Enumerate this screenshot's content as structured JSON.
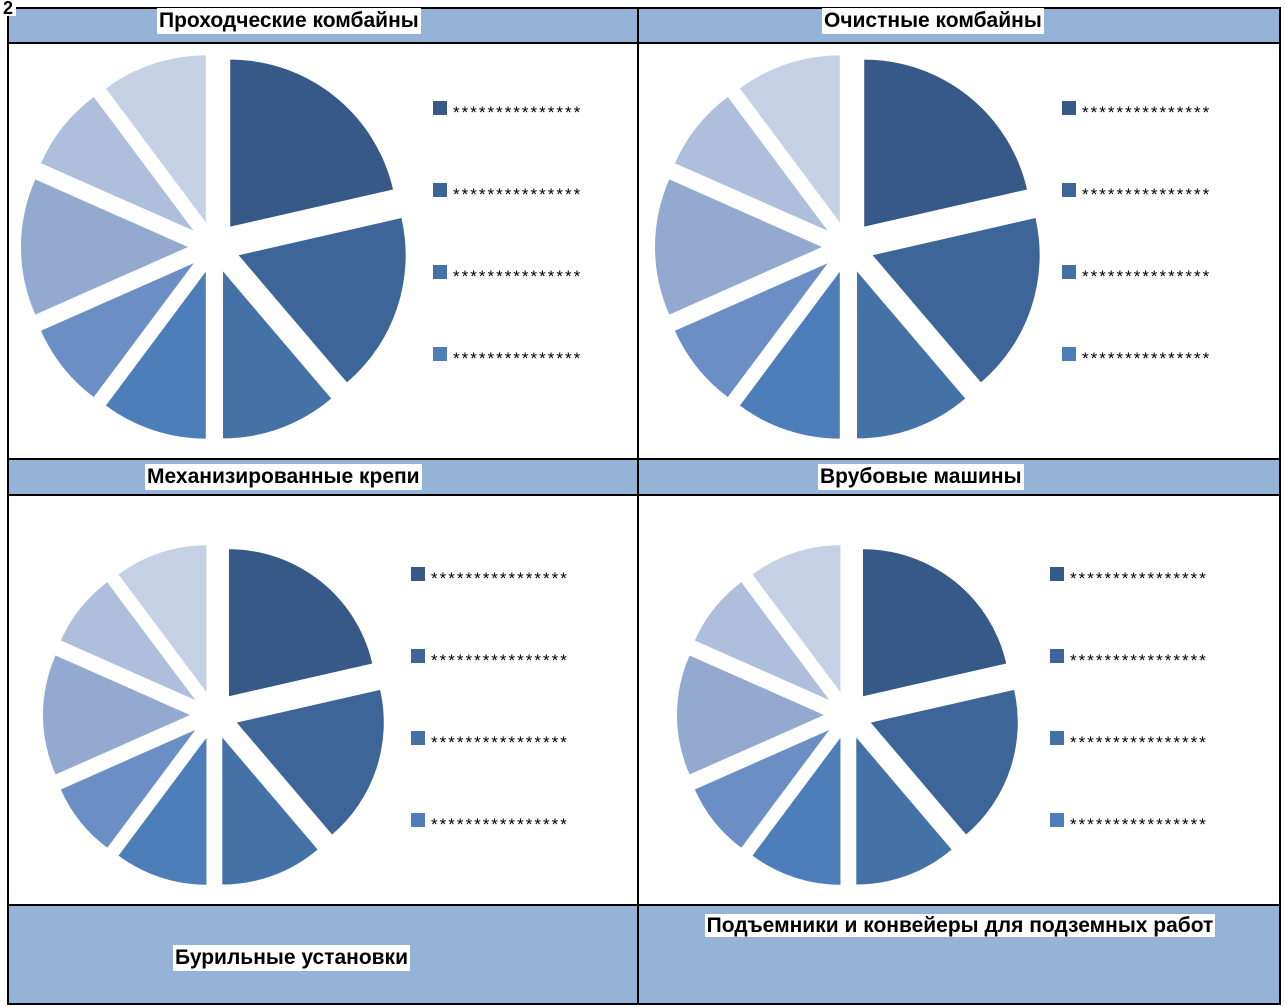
{
  "corner_mark": "2",
  "panels": [
    {
      "title": "Проходческие комбайны"
    },
    {
      "title": "Очистные комбайны"
    },
    {
      "title": "Механизированные  крепи"
    },
    {
      "title": "Врубовые машины"
    },
    {
      "title": "Бурильные установки"
    },
    {
      "title": "Подъемники и конвейеры для подземных работ"
    }
  ],
  "chart_data": [
    {
      "type": "pie",
      "title": "Проходческие комбайны",
      "values": [
        21,
        17,
        11,
        10,
        8,
        13,
        8,
        10
      ],
      "colors": [
        "#365987",
        "#3e6597",
        "#4472a6",
        "#4d7eb9",
        "#6b8fc4",
        "#93a9d0",
        "#aebfdd",
        "#c6d0e4"
      ],
      "legend": [
        "***************",
        "***************",
        "***************",
        "***************"
      ],
      "legend_colors": [
        "#365987",
        "#3e6597",
        "#4472a6",
        "#4d7eb9"
      ]
    },
    {
      "type": "pie",
      "title": "Очистные комбайны",
      "values": [
        21,
        17,
        11,
        10,
        8,
        13,
        8,
        10
      ],
      "colors": [
        "#365987",
        "#3e6597",
        "#4472a6",
        "#4d7eb9",
        "#6b8fc4",
        "#93a9d0",
        "#aebfdd",
        "#c6d0e4"
      ],
      "legend": [
        "***************",
        "***************",
        "***************",
        "***************"
      ],
      "legend_colors": [
        "#365987",
        "#3e6597",
        "#4472a6",
        "#4d7eb9"
      ]
    },
    {
      "type": "pie",
      "title": "Механизированные  крепи",
      "values": [
        21,
        17,
        11,
        10,
        8,
        13,
        8,
        10
      ],
      "colors": [
        "#365987",
        "#3e6597",
        "#4472a6",
        "#4d7eb9",
        "#6b8fc4",
        "#93a9d0",
        "#aebfdd",
        "#c6d0e4"
      ],
      "legend": [
        "****************",
        "****************",
        "****************",
        "****************"
      ],
      "legend_colors": [
        "#365987",
        "#3e6597",
        "#4472a6",
        "#4d7eb9"
      ]
    },
    {
      "type": "pie",
      "title": "Врубовые машины",
      "values": [
        21,
        17,
        11,
        10,
        8,
        13,
        8,
        10
      ],
      "colors": [
        "#365987",
        "#3e6597",
        "#4472a6",
        "#4d7eb9",
        "#6b8fc4",
        "#93a9d0",
        "#aebfdd",
        "#c6d0e4"
      ],
      "legend": [
        "****************",
        "****************",
        "****************",
        "****************"
      ],
      "legend_colors": [
        "#365987",
        "#3e6597",
        "#4472a6",
        "#4d7eb9"
      ]
    }
  ]
}
